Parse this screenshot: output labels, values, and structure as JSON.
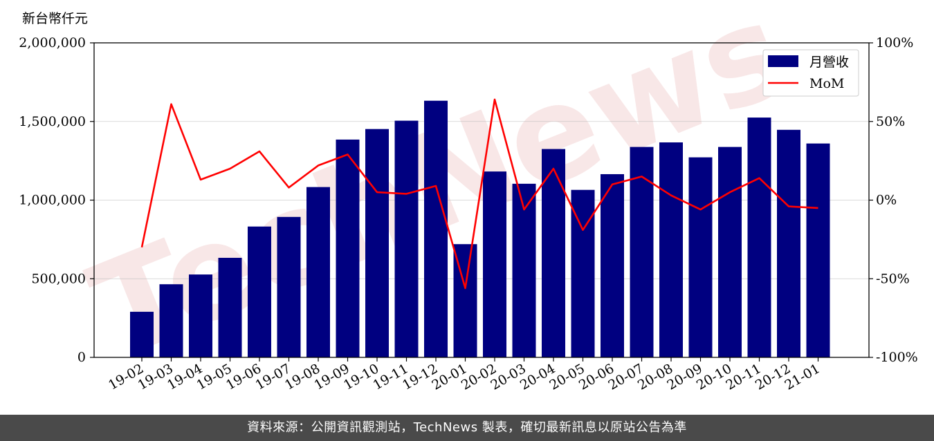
{
  "chart_data": {
    "type": "bar",
    "unit_label": "新台幣仟元",
    "categories": [
      "19-02",
      "19-03",
      "19-04",
      "19-05",
      "19-06",
      "19-07",
      "19-08",
      "19-09",
      "19-10",
      "19-11",
      "19-12",
      "20-01",
      "20-02",
      "20-03",
      "20-04",
      "20-05",
      "20-06",
      "20-07",
      "20-08",
      "20-09",
      "20-10",
      "20-11",
      "20-12",
      "21-01"
    ],
    "series": [
      {
        "name": "月營收",
        "type": "bar",
        "axis": "left",
        "color": "#000080",
        "values": [
          290000,
          465000,
          527000,
          633000,
          832000,
          893000,
          1083000,
          1385000,
          1452000,
          1505000,
          1632000,
          720000,
          1182000,
          1104000,
          1325000,
          1065000,
          1165000,
          1338000,
          1367000,
          1272000,
          1338000,
          1525000,
          1447000,
          1360000
        ]
      },
      {
        "name": "MoM",
        "type": "line",
        "axis": "right",
        "color": "#ff0000",
        "values": [
          -30,
          61,
          13,
          20,
          31,
          8,
          22,
          29,
          5,
          4,
          9,
          -56,
          64,
          -6,
          20,
          -19,
          10,
          15,
          3,
          -6,
          5,
          14,
          -4,
          -5
        ]
      }
    ],
    "ylim_left": [
      0,
      2000000
    ],
    "ylim_right": [
      -100,
      100
    ],
    "yticks_left": [
      "0",
      "500,000",
      "1,000,000",
      "1,500,000",
      "2,000,000"
    ],
    "yticks_right": [
      "-100%",
      "-50%",
      "0%",
      "50%",
      "100%"
    ],
    "grid": true,
    "legend_position": "top-right",
    "watermark": "TechNews"
  },
  "footer": {
    "source_text": "資料來源：公開資訊觀測站，TechNews 製表，確切最新訊息以原站公告為準"
  }
}
